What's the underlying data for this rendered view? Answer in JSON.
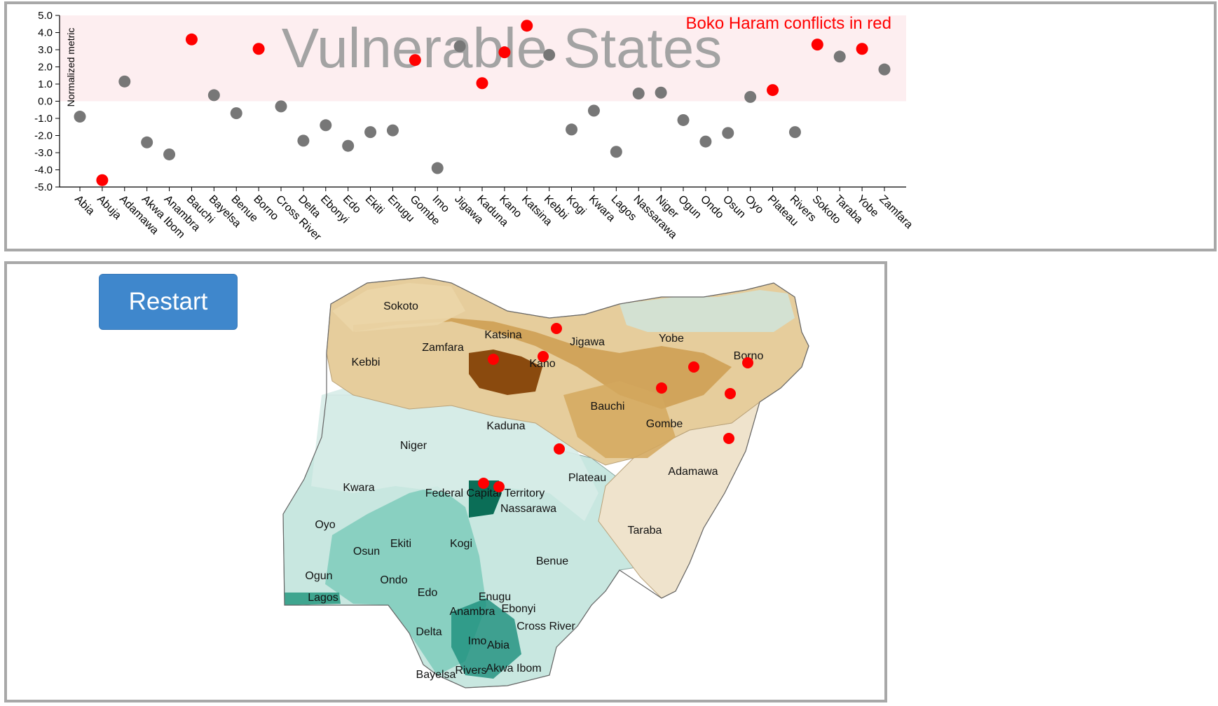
{
  "chart_data": {
    "type": "scatter",
    "title": "Vulnerable States",
    "ylabel": "Normalized metric",
    "annotation": "Boko Haram conflicts in red",
    "ylim": [
      -5,
      5
    ],
    "yticks": [
      "5.0",
      "4.0",
      "3.0",
      "2.0",
      "1.0",
      "0.0",
      "-1.0",
      "-2.0",
      "-3.0",
      "-4.0",
      "-5.0"
    ],
    "highlight_range": [
      0,
      5
    ],
    "categories": [
      "Abia",
      "Abuja",
      "Adamawa",
      "Akwa Ibom",
      "Anambra",
      "Bauchi",
      "Bayelsa",
      "Benue",
      "Borno",
      "Cross River",
      "Delta",
      "Ebonyi",
      "Edo",
      "Ekiti",
      "Enugu",
      "Gombe",
      "Imo",
      "Jigawa",
      "Kaduna",
      "Kano",
      "Katsina",
      "Kebbi",
      "Kogi",
      "Kwara",
      "Lagos",
      "Nassarawa",
      "Niger",
      "Ogun",
      "Ondo",
      "Osun",
      "Oyo",
      "Plateau",
      "Rivers",
      "Sokoto",
      "Taraba",
      "Yobe",
      "Zamfara"
    ],
    "values": [
      -0.9,
      -4.6,
      1.15,
      -2.4,
      -3.1,
      3.6,
      0.35,
      -0.7,
      3.05,
      -0.3,
      -2.3,
      -1.4,
      -2.6,
      -1.8,
      -1.7,
      2.4,
      -3.9,
      3.2,
      1.05,
      2.85,
      4.4,
      2.7,
      -1.65,
      -0.55,
      -2.95,
      0.45,
      0.5,
      -1.1,
      -2.35,
      -1.85,
      0.25,
      0.65,
      -1.8,
      3.3,
      2.6,
      3.05,
      1.85
    ],
    "boko_haram": [
      false,
      true,
      false,
      false,
      false,
      true,
      false,
      false,
      true,
      false,
      false,
      false,
      false,
      false,
      false,
      true,
      false,
      false,
      true,
      true,
      true,
      false,
      false,
      false,
      false,
      false,
      false,
      false,
      false,
      false,
      false,
      true,
      false,
      true,
      false,
      true,
      false
    ],
    "colors": {
      "normal": "#777777",
      "conflict": "#ff0000",
      "highlight": "#fdeef0",
      "title": "#a3a3a3"
    }
  },
  "map": {
    "states": [
      "Sokoto",
      "Kebbi",
      "Zamfara",
      "Katsina",
      "Kano",
      "Jigawa",
      "Yobe",
      "Borno",
      "Bauchi",
      "Gombe",
      "Kaduna",
      "Niger",
      "Plateau",
      "Adamawa",
      "Kwara",
      "Federal Capital Territory",
      "Nassarawa",
      "Taraba",
      "Oyo",
      "Osun",
      "Ekiti",
      "Kogi",
      "Benue",
      "Ogun",
      "Ondo",
      "Edo",
      "Lagos",
      "Enugu",
      "Anambra",
      "Ebonyi",
      "Delta",
      "Cross River",
      "Imo",
      "Abia",
      "Bayelsa",
      "Rivers",
      "Akwa Ibom"
    ],
    "colors": {
      "north_dark": "#8a4a0e",
      "north_mid": "#c99646",
      "north_light": "#e6cd9c",
      "south_light": "#c8e7e0",
      "south_mid": "#7ecbbb",
      "south_dark": "#1c8f7c",
      "fct": "#0b6e57",
      "marker": "#ff0000"
    }
  },
  "controls": {
    "restart_label": "Restart"
  }
}
